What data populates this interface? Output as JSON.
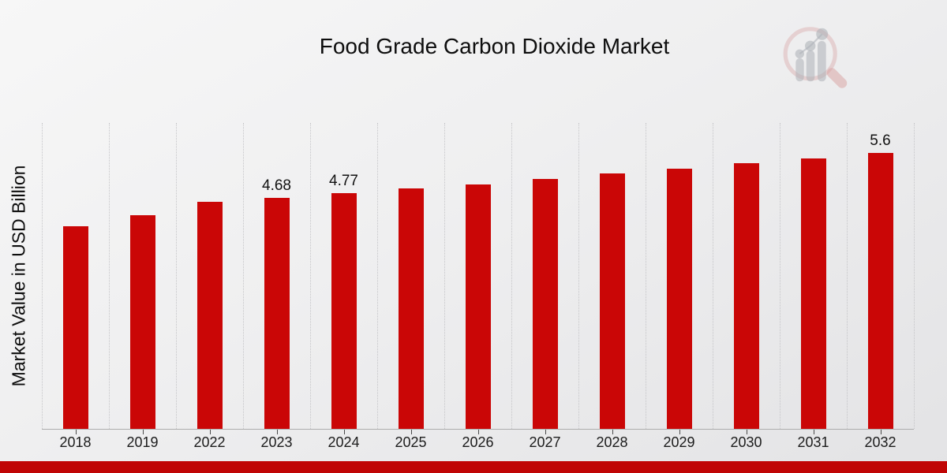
{
  "chart_data": {
    "type": "bar",
    "title": "Food Grade Carbon Dioxide Market",
    "ylabel": "Market Value in USD Billion",
    "xlabel": "",
    "categories": [
      "2018",
      "2019",
      "2022",
      "2023",
      "2024",
      "2025",
      "2026",
      "2027",
      "2028",
      "2029",
      "2030",
      "2031",
      "2032"
    ],
    "values": [
      4.1,
      4.33,
      4.6,
      4.68,
      4.77,
      4.87,
      4.96,
      5.06,
      5.17,
      5.27,
      5.38,
      5.48,
      5.6
    ],
    "data_labels": [
      "",
      "",
      "",
      "4.68",
      "4.77",
      "",
      "",
      "",
      "",
      "",
      "",
      "",
      "5.6"
    ],
    "ylim": [
      0,
      6.2
    ],
    "grid": "vertical-dotted-category-boundaries",
    "legend": "none",
    "bar_color": "#ca0606"
  },
  "branding": {
    "logo_icon": "magnifier-bar-chart-logo"
  },
  "colors": {
    "bar": "#ca0606",
    "footer_bar": "#c00505",
    "gridline": "#c5c5c8",
    "axis_line": "#adadad",
    "background_top": "#f7f7f7",
    "background_bottom": "#e3e3e5",
    "logo_ring_pink": "#d9a8a8",
    "logo_bar_gray": "#aeb2b8"
  }
}
